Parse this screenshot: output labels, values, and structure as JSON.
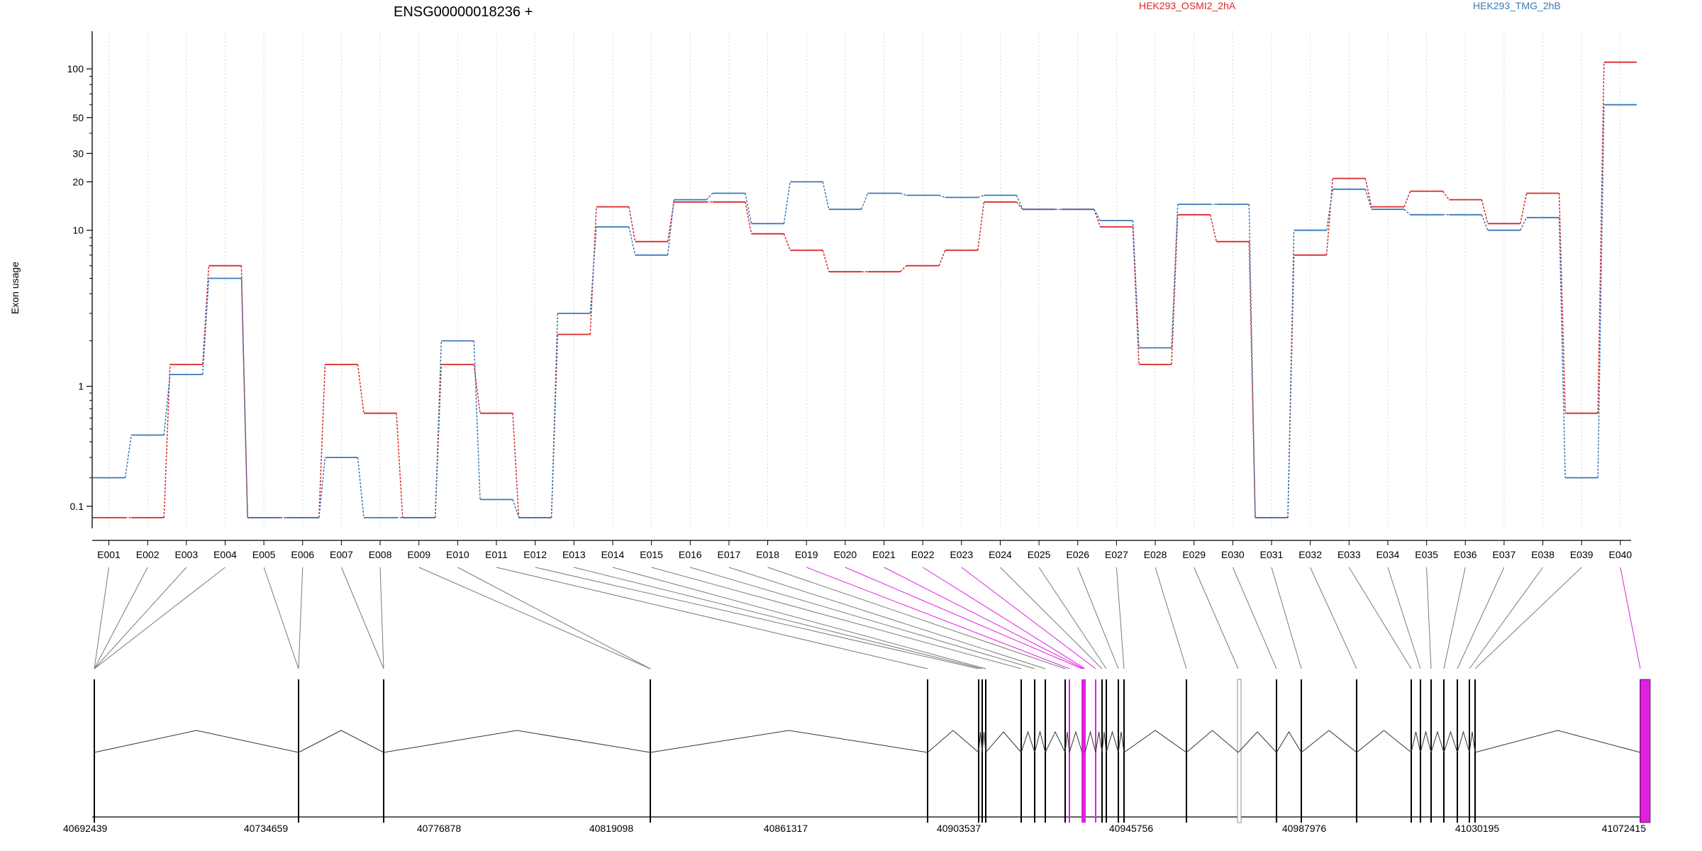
{
  "title": "ENSG00000018236 +",
  "legend": [
    {
      "label": "HEK293_OSMI2_2hA",
      "color": "#d62728"
    },
    {
      "label": "HEK293_TMG_2hB",
      "color": "#3a78b5"
    }
  ],
  "chart_data": {
    "type": "line",
    "title": "ENSG00000018236 +",
    "ylabel": "Exon usage",
    "y_scale": "log(x+0.1)",
    "y_ticks": [
      {
        "v": 0.1,
        "label": "0.1"
      },
      {
        "v": 1,
        "label": "1"
      },
      {
        "v": 10,
        "label": "10"
      },
      {
        "v": 20,
        "label": "20"
      },
      {
        "v": 30,
        "label": "30"
      },
      {
        "v": 50,
        "label": "50"
      },
      {
        "v": 100,
        "label": "100"
      }
    ],
    "y_minor_ticks": [
      0.2,
      0.3,
      0.4,
      0.5,
      0.6,
      0.7,
      0.8,
      0.9,
      2,
      3,
      4,
      5,
      6,
      7,
      8,
      9,
      40,
      60,
      70,
      80,
      90
    ],
    "ylim": [
      0.07,
      125
    ],
    "grid": "vertical dotted lines at each exon",
    "legend_placement": "top",
    "categories": [
      "E001",
      "E002",
      "E003",
      "E004",
      "E005",
      "E006",
      "E007",
      "E008",
      "E009",
      "E010",
      "E011",
      "E012",
      "E013",
      "E014",
      "E015",
      "E016",
      "E017",
      "E018",
      "E019",
      "E020",
      "E021",
      "E022",
      "E023",
      "E024",
      "E025",
      "E026",
      "E027",
      "E028",
      "E029",
      "E030",
      "E031",
      "E032",
      "E033",
      "E034",
      "E035",
      "E036",
      "E037",
      "E038",
      "E039",
      "E040"
    ],
    "series": [
      {
        "name": "HEK293_OSMI2_2hA",
        "color": "#d62728",
        "values": [
          0.07,
          0.07,
          1.4,
          6.0,
          0.07,
          0.07,
          1.4,
          0.65,
          0.07,
          1.4,
          0.65,
          0.07,
          2.2,
          14,
          8.5,
          15,
          15,
          9.5,
          7.5,
          5.5,
          5.5,
          6.0,
          7.5,
          15,
          13.5,
          13.5,
          10.5,
          1.4,
          12.5,
          8.5,
          0.07,
          7.0,
          21,
          14,
          17.5,
          15.5,
          11,
          17,
          0.65,
          110
        ]
      },
      {
        "name": "HEK293_TMG_2hB",
        "color": "#3a78b5",
        "values": [
          0.2,
          0.45,
          1.2,
          5.0,
          0.07,
          0.07,
          0.3,
          0.07,
          0.07,
          2.0,
          0.12,
          0.07,
          3.0,
          10.5,
          7.0,
          15.5,
          17,
          11,
          20,
          13.5,
          17,
          16.5,
          16,
          16.5,
          13.5,
          13.5,
          11.5,
          1.8,
          14.5,
          14.5,
          0.07,
          10,
          18,
          13.5,
          12.5,
          12.5,
          10,
          12,
          0.2,
          60
        ]
      }
    ],
    "genomic_axis_ticks": [
      "40692439",
      "40734659",
      "40776878",
      "40819098",
      "40861317",
      "40903537",
      "40945756",
      "40987976",
      "41030195",
      "41072415"
    ],
    "highlighted_exons": [
      "E019",
      "E020",
      "E021",
      "E022",
      "E023",
      "E040"
    ],
    "highlight_color": "#e020e0"
  }
}
